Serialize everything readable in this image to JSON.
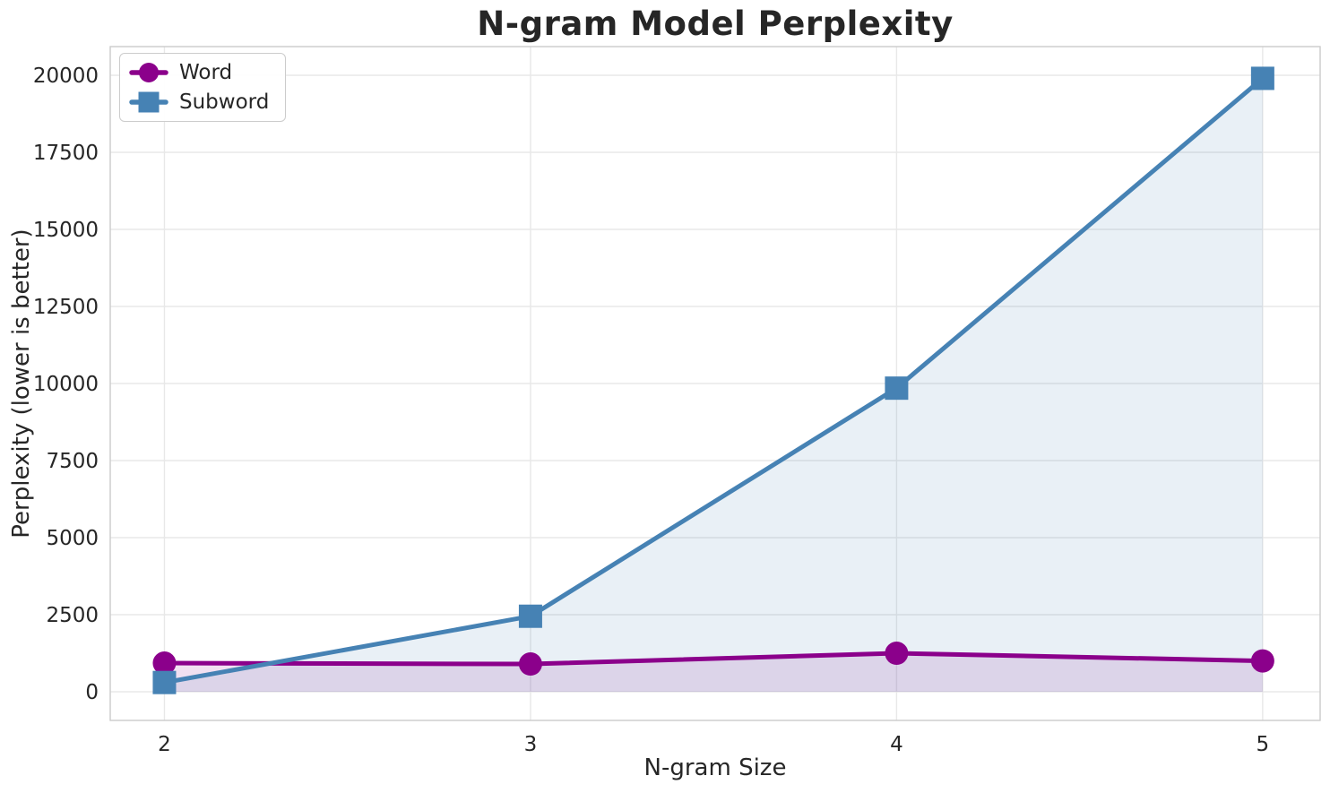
{
  "chart_data": {
    "type": "line",
    "title": "N-gram Model Perplexity",
    "xlabel": "N-gram Size",
    "ylabel": "Perplexity (lower is better)",
    "x": [
      2,
      3,
      4,
      5
    ],
    "x_tick_labels": [
      "2",
      "3",
      "4",
      "5"
    ],
    "y_ticks": [
      0,
      2500,
      5000,
      7500,
      10000,
      12500,
      15000,
      17500,
      20000
    ],
    "xlim": [
      1.852,
      5.157
    ],
    "ylim": [
      -930,
      20930
    ],
    "grid": true,
    "legend": {
      "position": "upper-left"
    },
    "area_fill": {
      "baseline": 0,
      "opacity": 0.12
    },
    "series": [
      {
        "name": "Word",
        "marker": "circle",
        "color": "#8B008B",
        "values": [
          930,
          900,
          1250,
          1000
        ]
      },
      {
        "name": "Subword",
        "marker": "square",
        "color": "#4682B4",
        "values": [
          300,
          2450,
          9850,
          19900
        ]
      }
    ]
  },
  "style_colors": {
    "background": "#FFFFFF",
    "grid": "#E8E8E8",
    "spine": "#CBCBCB",
    "text": "#262626"
  }
}
